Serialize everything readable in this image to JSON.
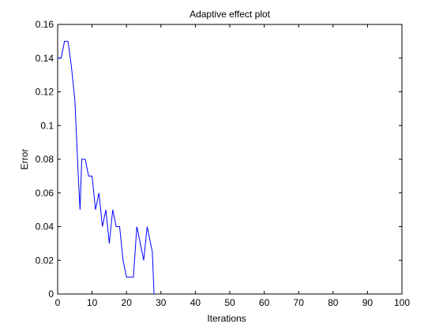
{
  "chart_data": {
    "type": "line",
    "title": "Adaptive effect plot",
    "xlabel": "Iterations",
    "ylabel": "Error",
    "xlim": [
      0,
      100
    ],
    "ylim": [
      0,
      0.16
    ],
    "xticks": [
      0,
      10,
      20,
      30,
      40,
      50,
      60,
      70,
      80,
      90,
      100
    ],
    "yticks": [
      0,
      0.02,
      0.04,
      0.06,
      0.08,
      0.1,
      0.12,
      0.14,
      0.16
    ],
    "xtick_labels": [
      "0",
      "10",
      "20",
      "30",
      "40",
      "50",
      "60",
      "70",
      "80",
      "90",
      "100"
    ],
    "ytick_labels": [
      "0",
      "0.02",
      "0.04",
      "0.06",
      "0.08",
      "0.1",
      "0.12",
      "0.14",
      "0.16"
    ],
    "grid": false,
    "series": [
      {
        "color": "#0000ff",
        "x": [
          0,
          1,
          2,
          3,
          4,
          5,
          6,
          6.5,
          7,
          8,
          9,
          10,
          11,
          12,
          13,
          14,
          15,
          16,
          17,
          18,
          19,
          20,
          21,
          22,
          23,
          24,
          25,
          26,
          27,
          27.5,
          28,
          28.2
        ],
        "y": [
          0.14,
          0.14,
          0.15,
          0.15,
          0.135,
          0.115,
          0.07,
          0.05,
          0.08,
          0.08,
          0.07,
          0.07,
          0.05,
          0.06,
          0.04,
          0.05,
          0.03,
          0.05,
          0.04,
          0.04,
          0.02,
          0.01,
          0.01,
          0.01,
          0.04,
          0.03,
          0.02,
          0.04,
          0.03,
          0.025,
          0.0,
          0.0
        ]
      }
    ]
  }
}
